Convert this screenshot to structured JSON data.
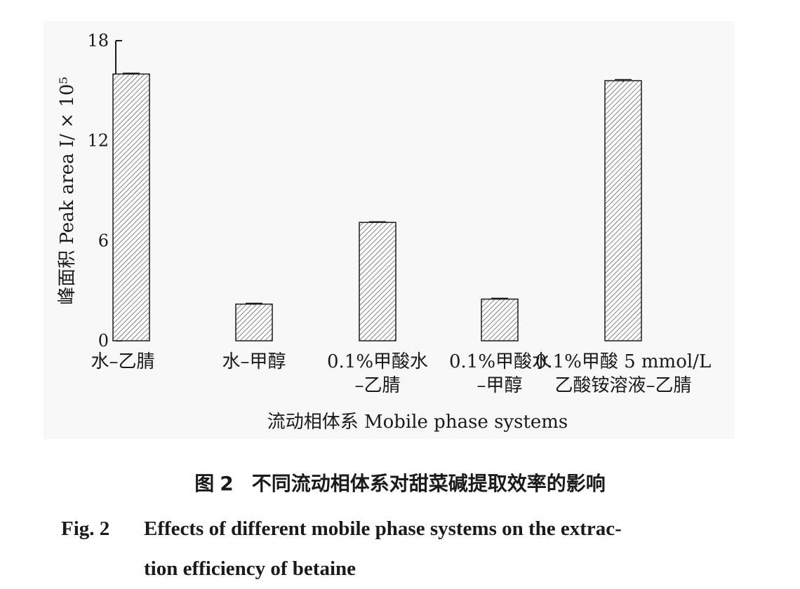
{
  "chart_data": {
    "type": "bar",
    "categories": [
      [
        "水–乙腈"
      ],
      [
        "水–甲醇"
      ],
      [
        "0.1%甲酸水",
        "–乙腈"
      ],
      [
        "0.1%甲酸水",
        "–甲醇"
      ],
      [
        "0.1%甲酸 5 mmol/L",
        "乙酸铵溶液–乙腈"
      ]
    ],
    "values": [
      16.0,
      2.2,
      7.1,
      2.5,
      15.6
    ],
    "errors": [
      0.05,
      0.05,
      0.04,
      0.05,
      0.07
    ],
    "ylim": [
      0,
      18
    ],
    "yticks": [
      "0",
      "6",
      "12",
      "18"
    ],
    "ylabel": "峰面积 Peak area I/ × 10⁵",
    "xlabel": "流动相体系 Mobile phase systems",
    "bar_pattern": "diagonal hatch",
    "bar_fill": "#ffffff",
    "bar_stroke": "#1a1a1a"
  },
  "caption": {
    "cn_prefix": "图",
    "cn_num": "2",
    "cn_text": "不同流动相体系对甜菜碱提取效率的影响",
    "en_label": "Fig. 2",
    "en_line1": "Effects of different mobile phase systems on the extrac-",
    "en_line2": "tion efficiency of betaine"
  }
}
